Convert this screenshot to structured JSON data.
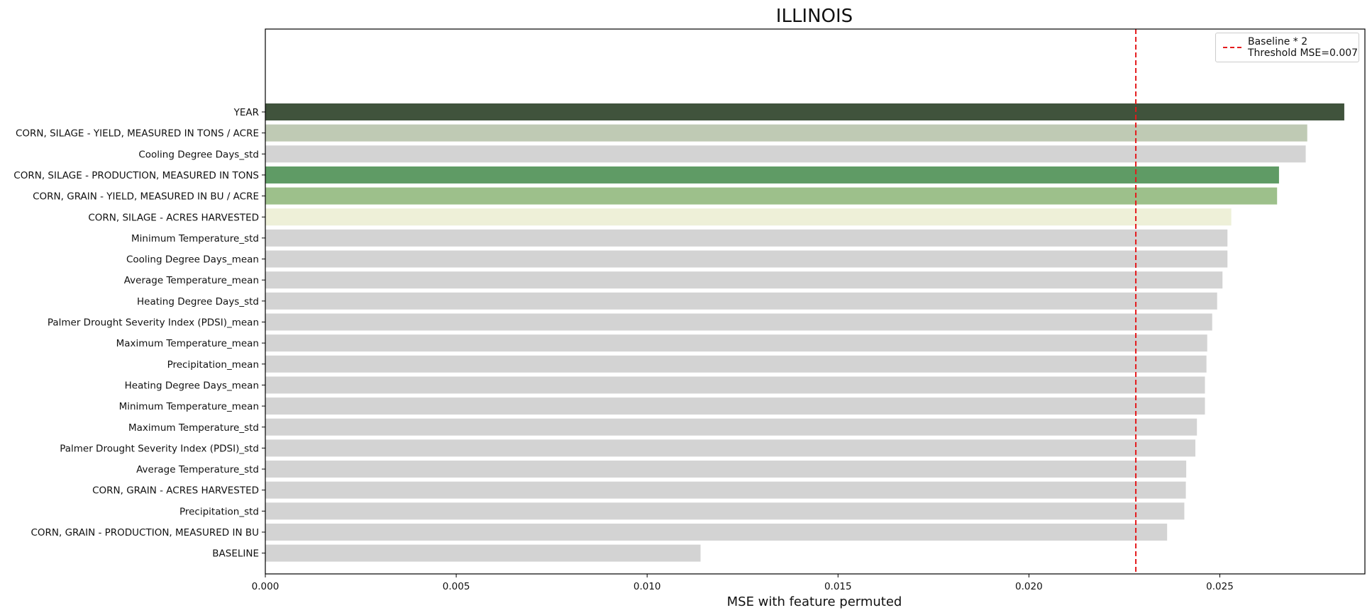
{
  "chart_data": {
    "type": "bar",
    "orientation": "horizontal",
    "title": "ILLINOIS",
    "xlabel": "MSE with feature permuted",
    "ylabel": "",
    "xlim": [
      0.0,
      0.0288
    ],
    "xticks": [
      "0.000",
      "0.005",
      "0.010",
      "0.015",
      "0.020",
      "0.025"
    ],
    "xtick_values": [
      0.0,
      0.005,
      0.01,
      0.015,
      0.02,
      0.025
    ],
    "grid": false,
    "legend_position": "top-right",
    "threshold": {
      "value": 0.0228,
      "color": "#e41a1c",
      "legend_label": [
        "Baseline * 2",
        "Threshold MSE=0.007"
      ]
    },
    "categories": [
      "YEAR",
      "CORN, SILAGE - YIELD, MEASURED IN TONS / ACRE",
      "Cooling Degree Days_std",
      "CORN, SILAGE - PRODUCTION, MEASURED IN TONS",
      "CORN, GRAIN - YIELD, MEASURED IN BU / ACRE",
      "CORN, SILAGE - ACRES HARVESTED",
      "Minimum Temperature_std",
      "Cooling Degree Days_mean",
      "Average Temperature_mean",
      "Heating Degree Days_std",
      "Palmer Drought Severity Index (PDSI)_mean",
      "Maximum Temperature_mean",
      "Precipitation_mean",
      "Heating Degree Days_mean",
      "Minimum Temperature_mean",
      "Maximum Temperature_std",
      "Palmer Drought Severity Index (PDSI)_std",
      "Average Temperature_std",
      "CORN, GRAIN - ACRES HARVESTED",
      "Precipitation_std",
      "CORN, GRAIN - PRODUCTION, MEASURED IN BU",
      "BASELINE"
    ],
    "values": [
      0.02826,
      0.02729,
      0.02725,
      0.02655,
      0.0265,
      0.0253,
      0.0252,
      0.0252,
      0.02507,
      0.02493,
      0.0248,
      0.02467,
      0.02465,
      0.02461,
      0.02461,
      0.0244,
      0.02436,
      0.02412,
      0.02411,
      0.02407,
      0.02362,
      0.0114
    ],
    "colors": [
      "#40533c",
      "#bfcab4",
      "#d3d3d3",
      "#5f9b65",
      "#9dc08b",
      "#eef0d8",
      "#d3d3d3",
      "#d3d3d3",
      "#d3d3d3",
      "#d3d3d3",
      "#d3d3d3",
      "#d3d3d3",
      "#d3d3d3",
      "#d3d3d3",
      "#d3d3d3",
      "#d3d3d3",
      "#d3d3d3",
      "#d3d3d3",
      "#d3d3d3",
      "#d3d3d3",
      "#d3d3d3",
      "#d3d3d3"
    ]
  }
}
